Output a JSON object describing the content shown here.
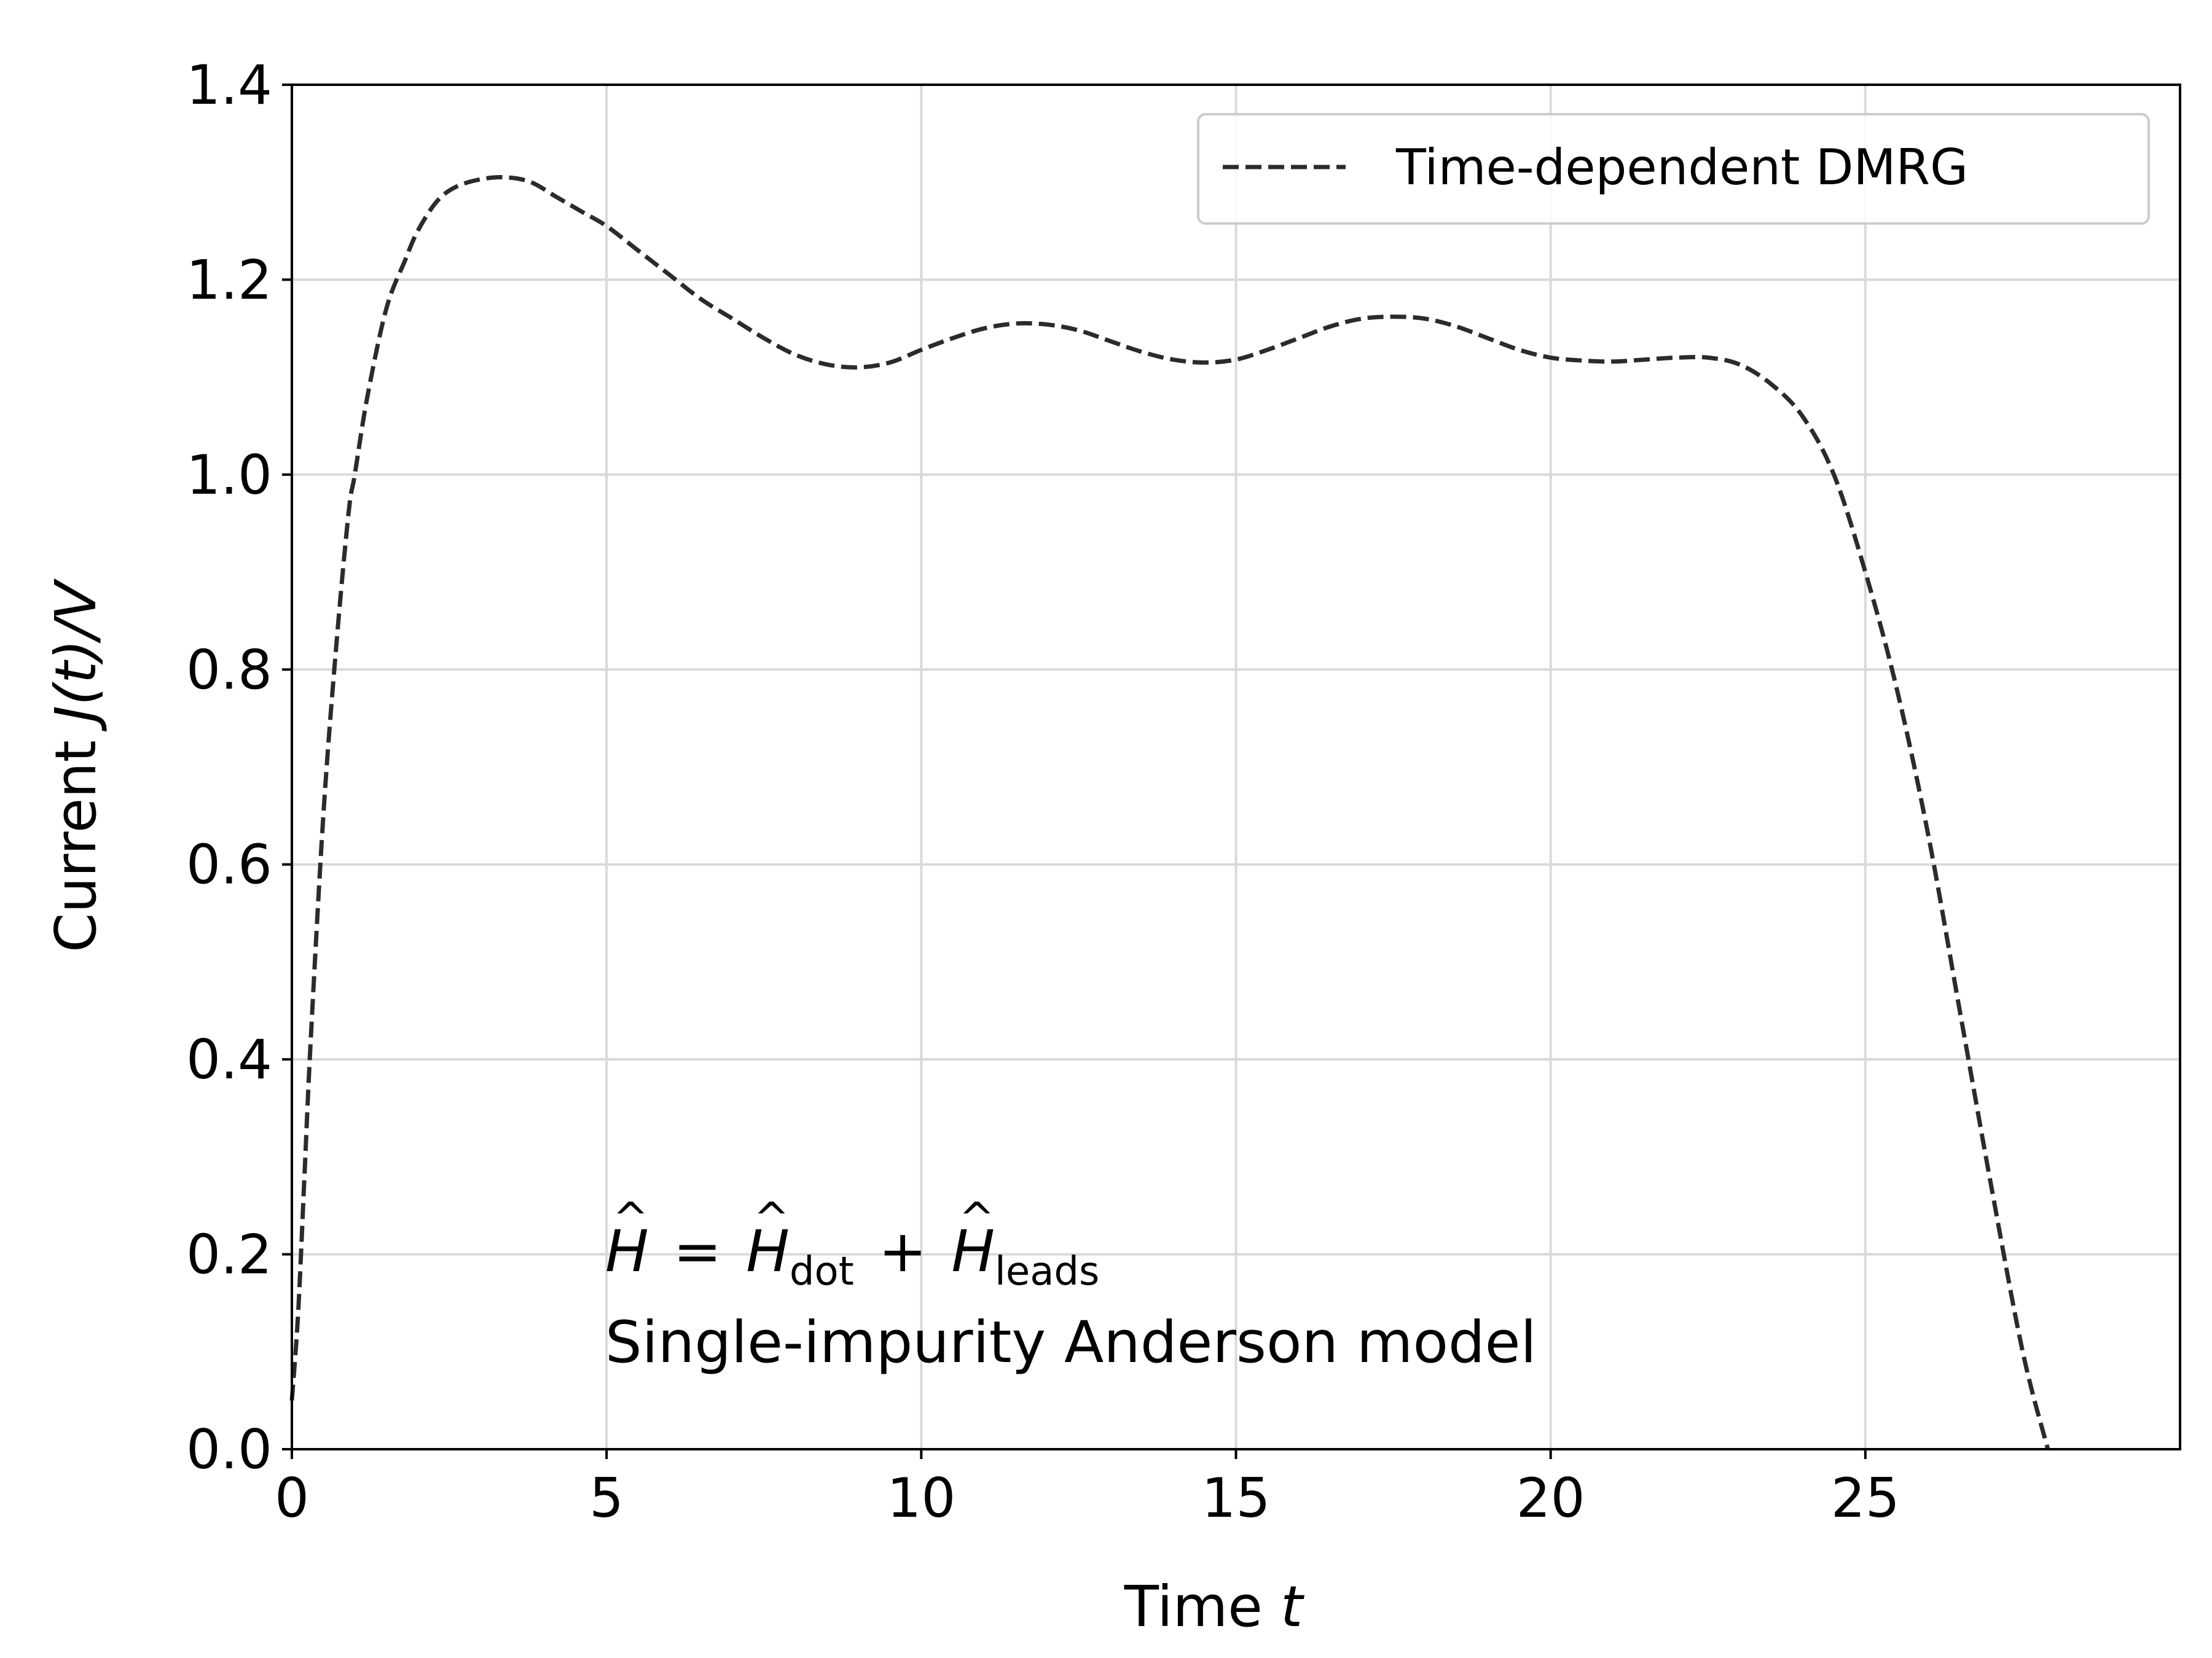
{
  "chart_data": {
    "type": "line",
    "x_label": {
      "prefix": "Time ",
      "var": "t"
    },
    "y_label": {
      "prefix": "Current ",
      "math": "J(t)/V"
    },
    "xlim": [
      0,
      30
    ],
    "ylim": [
      0.0,
      1.4
    ],
    "x_ticks": [
      0,
      5,
      10,
      15,
      20,
      25
    ],
    "x_tick_labels": [
      "0",
      "5",
      "10",
      "15",
      "20",
      "25"
    ],
    "y_ticks": [
      0.0,
      0.2,
      0.4,
      0.6,
      0.8,
      1.0,
      1.2,
      1.4
    ],
    "y_tick_labels": [
      "0.0",
      "0.2",
      "0.4",
      "0.6",
      "0.8",
      "1.0",
      "1.2",
      "1.4"
    ],
    "grid": true,
    "legend_position": "top-right",
    "series": [
      {
        "name": "Time-dependent DMRG",
        "color": "#2b2b2b",
        "line_style": "dashed",
        "x": [
          0.0,
          0.1,
          0.2,
          0.3,
          0.5,
          0.7,
          0.9,
          1.0,
          1.2,
          1.5,
          1.8,
          2.0,
          2.3,
          2.6,
          3.0,
          3.4,
          3.8,
          4.2,
          4.6,
          5.0,
          5.5,
          6.0,
          6.5,
          7.0,
          7.5,
          8.0,
          8.5,
          9.0,
          9.5,
          10.0,
          10.5,
          11.0,
          11.5,
          12.0,
          12.5,
          13.0,
          13.5,
          14.0,
          14.5,
          15.0,
          15.5,
          16.0,
          16.5,
          17.0,
          17.5,
          18.0,
          18.5,
          19.0,
          19.5,
          20.0,
          20.5,
          21.0,
          21.5,
          22.0,
          22.5,
          23.0,
          23.5,
          24.0,
          24.5,
          25.0,
          25.5,
          26.0,
          26.5,
          27.0,
          27.5,
          27.9
        ],
        "y": [
          0.05,
          0.14,
          0.28,
          0.42,
          0.65,
          0.82,
          0.96,
          1.0,
          1.08,
          1.17,
          1.22,
          1.25,
          1.28,
          1.295,
          1.303,
          1.305,
          1.3,
          1.285,
          1.27,
          1.255,
          1.23,
          1.205,
          1.18,
          1.16,
          1.14,
          1.123,
          1.113,
          1.11,
          1.115,
          1.128,
          1.14,
          1.15,
          1.155,
          1.154,
          1.148,
          1.137,
          1.126,
          1.118,
          1.115,
          1.118,
          1.128,
          1.14,
          1.152,
          1.16,
          1.162,
          1.16,
          1.152,
          1.14,
          1.128,
          1.12,
          1.117,
          1.116,
          1.118,
          1.12,
          1.12,
          1.113,
          1.093,
          1.06,
          1.0,
          0.9,
          0.78,
          0.63,
          0.45,
          0.27,
          0.1,
          0.0
        ]
      }
    ]
  },
  "annotation": {
    "equation": {
      "lhs": "H",
      "term1": "H",
      "sub1": "dot",
      "term2": "H",
      "sub2": "leads",
      "hat": "^",
      "eq": "=",
      "plus": "+"
    },
    "model_label": "Single-impurity Anderson model"
  }
}
